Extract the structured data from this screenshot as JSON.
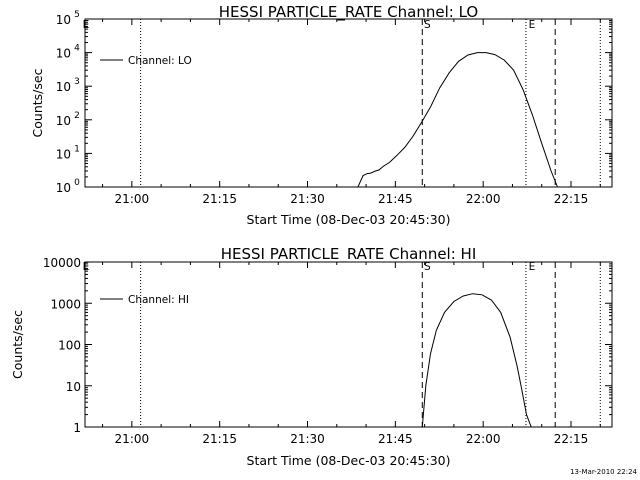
{
  "chart_data": [
    {
      "type": "line",
      "title": "HESSI PARTICLE_RATE Channel: LO",
      "xlabel": "Start Time (08-Dec-03 20:45:30)",
      "ylabel": "Counts/sec",
      "y_scale": "log",
      "ylim": [
        1,
        100000
      ],
      "xlim": [
        "20:52",
        "22:22"
      ],
      "x_ticks": [
        "21:00",
        "21:15",
        "21:30",
        "21:45",
        "22:00",
        "22:15"
      ],
      "y_ticks": [
        {
          "value": 1,
          "base": "10",
          "exp": "0"
        },
        {
          "value": 10,
          "base": "10",
          "exp": "1"
        },
        {
          "value": 100,
          "base": "10",
          "exp": "2"
        },
        {
          "value": 1000,
          "base": "10",
          "exp": "3"
        },
        {
          "value": 10000,
          "base": "10",
          "exp": "4"
        },
        {
          "value": 100000,
          "base": "10",
          "exp": "5"
        }
      ],
      "legend": {
        "position": "top-left",
        "entries": [
          "Channel: LO"
        ]
      },
      "series": [
        {
          "name": "Channel: LO",
          "x": [
            "21:38.6",
            "21:39.5",
            "21:40.2",
            "21:40.8",
            "21:41.6",
            "21:42.2",
            "21:43.0",
            "21:44.0",
            "21:45.2",
            "21:46.6",
            "21:48.0",
            "21:49.4",
            "21:51.0",
            "21:52.6",
            "21:54.2",
            "21:55.8",
            "21:57.4",
            "21:59.0",
            "22:00.5",
            "22:02.0",
            "22:03.6",
            "22:05.2",
            "22:06.8",
            "22:08.4",
            "22:10.0",
            "22:11.6",
            "22:12.7"
          ],
          "y": [
            1,
            2.2,
            2.5,
            2.6,
            3.0,
            3.2,
            4.2,
            5.4,
            8.5,
            15,
            32,
            80,
            240,
            900,
            2500,
            5500,
            8500,
            10000,
            10000,
            8700,
            6000,
            3000,
            800,
            140,
            20,
            3,
            1
          ]
        }
      ],
      "vertical_lines": [
        {
          "x": "21:01.5",
          "style": "dotted"
        },
        {
          "x": "21:49.6",
          "style": "dashed",
          "label": "S"
        },
        {
          "x": "22:07.3",
          "style": "dotted",
          "label": "E"
        },
        {
          "x": "22:12.3",
          "style": "dashed"
        },
        {
          "x": "22:20.0",
          "style": "dotted"
        }
      ],
      "corner_label": "E"
    },
    {
      "type": "line",
      "title": "HESSI PARTICLE_RATE Channel: HI",
      "xlabel": "Start Time (08-Dec-03 20:45:30)",
      "ylabel": "Counts/sec",
      "y_scale": "log",
      "ylim": [
        1,
        10000
      ],
      "xlim": [
        "20:52",
        "22:22"
      ],
      "x_ticks": [
        "21:00",
        "21:15",
        "21:30",
        "21:45",
        "22:00",
        "22:15"
      ],
      "y_ticks": [
        {
          "value": 1,
          "label": "1"
        },
        {
          "value": 10,
          "label": "10"
        },
        {
          "value": 100,
          "label": "100"
        },
        {
          "value": 1000,
          "label": "1000"
        },
        {
          "value": 10000,
          "label": "10000"
        }
      ],
      "legend": {
        "position": "top-left",
        "entries": [
          "Channel: HI"
        ]
      },
      "series": [
        {
          "name": "Channel: HI",
          "x": [
            "21:49.6",
            "21:50.2",
            "21:51.0",
            "21:52.0",
            "21:53.4",
            "21:55.0",
            "21:56.6",
            "21:58.2",
            "21:59.8",
            "22:01.4",
            "22:03.0",
            "22:04.6",
            "22:05.8",
            "22:06.6",
            "22:07.4",
            "22:08.2"
          ],
          "y": [
            1,
            10,
            60,
            220,
            600,
            1100,
            1500,
            1700,
            1600,
            1200,
            600,
            150,
            30,
            8,
            2,
            1
          ]
        }
      ],
      "vertical_lines": [
        {
          "x": "21:01.5",
          "style": "dotted"
        },
        {
          "x": "21:49.6",
          "style": "dashed",
          "label": "S"
        },
        {
          "x": "22:07.3",
          "style": "dotted",
          "label": "E"
        },
        {
          "x": "22:12.3",
          "style": "dashed"
        },
        {
          "x": "22:20.0",
          "style": "dotted"
        }
      ],
      "corner_label": "E"
    }
  ],
  "footer": {
    "timestamp": "13-Mar-2010 22:24"
  }
}
